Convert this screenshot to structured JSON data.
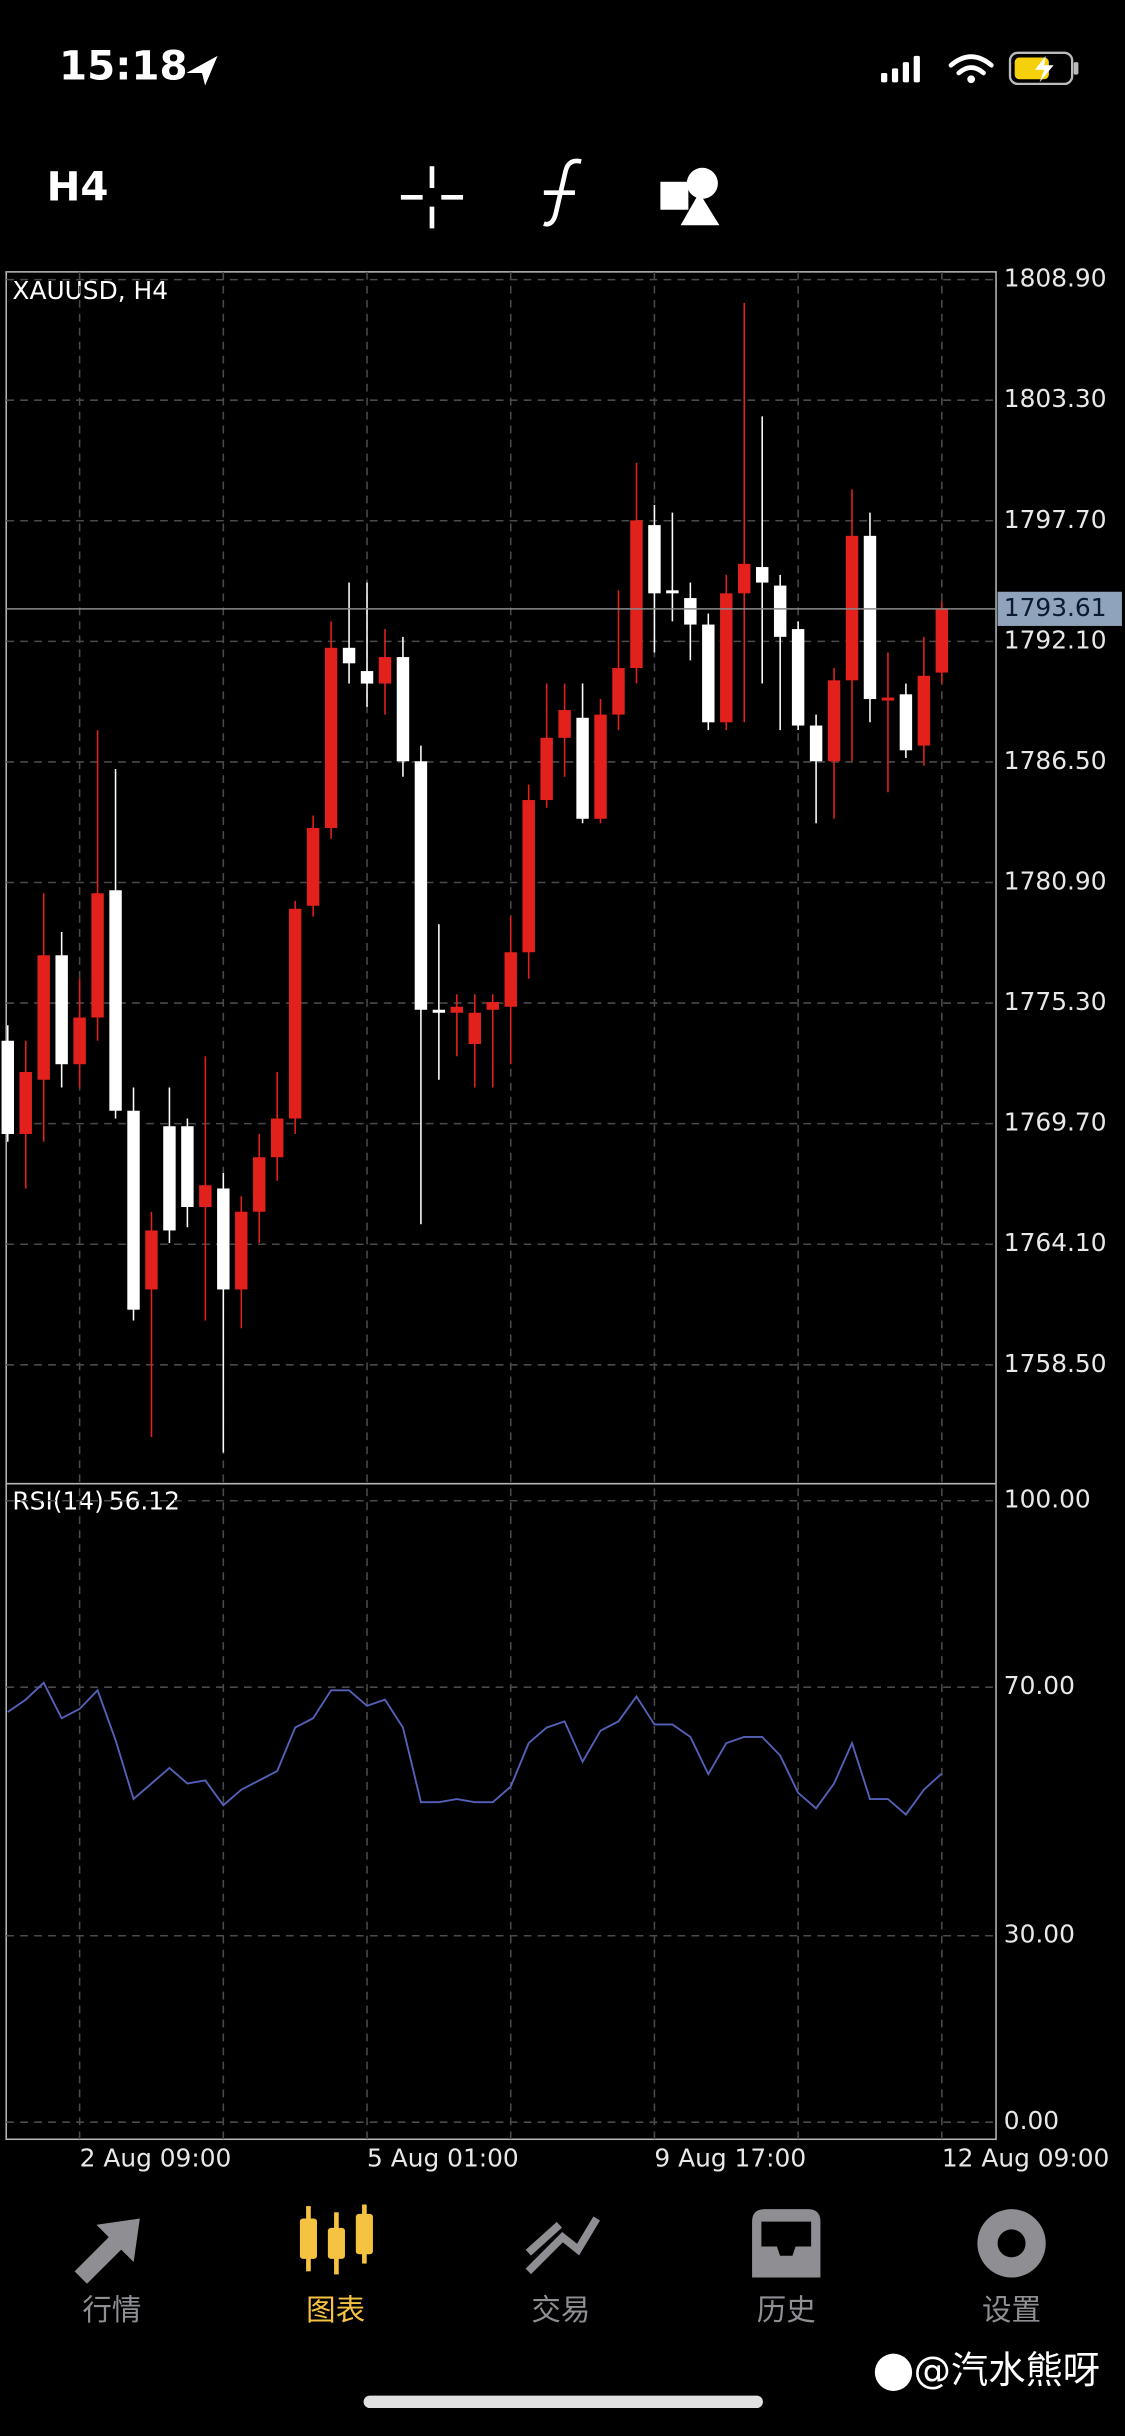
{
  "status_bar": {
    "time": "15:18"
  },
  "toolbar": {
    "timeframe": "H4"
  },
  "chart_data": [
    {
      "type": "candlestick",
      "title": "XAUUSD, H4",
      "categories": [
        null,
        null,
        null,
        null,
        "2 Aug 09:00",
        null,
        null,
        null,
        null,
        null,
        null,
        null,
        null,
        null,
        null,
        null,
        null,
        null,
        null,
        null,
        "5 Aug 01:00",
        null,
        null,
        null,
        null,
        null,
        null,
        null,
        null,
        null,
        null,
        null,
        null,
        null,
        null,
        null,
        "9 Aug 17:00",
        null,
        null,
        null,
        null,
        null,
        null,
        null,
        null,
        null,
        null,
        null,
        null,
        null,
        null,
        null,
        "12 Aug 09:00"
      ],
      "open": [
        1773.55,
        1769.22,
        1771.74,
        1777.52,
        1772.46,
        1774.63,
        1780.54,
        1770.3,
        1762.0,
        1769.58,
        1769.58,
        1765.83,
        1766.69,
        1762.0,
        1765.61,
        1768.14,
        1769.94,
        1779.82,
        1783.43,
        1791.8,
        1790.72,
        1790.14,
        1791.37,
        1786.53,
        1774.99,
        1774.85,
        1773.4,
        1774.99,
        1775.13,
        1777.66,
        1784.73,
        1787.62,
        1788.55,
        1783.86,
        1788.7,
        1790.86,
        1797.5,
        1794.47,
        1794.11,
        1792.88,
        1788.34,
        1794.33,
        1795.55,
        1794.69,
        1792.67,
        1788.19,
        1786.53,
        1790.29,
        1797.0,
        1789.35,
        1789.64,
        1787.26,
        1790.65
      ],
      "high": [
        1774.27,
        1773.55,
        1780.4,
        1778.6,
        1776.43,
        1787.98,
        1786.17,
        1771.38,
        1765.61,
        1771.38,
        1769.94,
        1772.83,
        1767.41,
        1766.33,
        1769.22,
        1772.1,
        1780.04,
        1784.01,
        1793.03,
        1794.83,
        1794.83,
        1792.67,
        1792.31,
        1787.26,
        1778.96,
        1775.71,
        1775.71,
        1775.71,
        1779.32,
        1785.45,
        1790.14,
        1790.14,
        1790.14,
        1789.42,
        1794.47,
        1800.39,
        1798.44,
        1798.08,
        1794.83,
        1793.39,
        1795.19,
        1807.82,
        1802.55,
        1795.19,
        1793.03,
        1788.7,
        1790.86,
        1799.16,
        1798.08,
        1791.58,
        1790.14,
        1792.31,
        1793.96
      ],
      "low": [
        1768.86,
        1766.69,
        1768.86,
        1771.38,
        1771.38,
        1773.55,
        1769.94,
        1760.56,
        1755.15,
        1764.16,
        1764.89,
        1760.56,
        1754.43,
        1760.2,
        1764.16,
        1767.05,
        1769.22,
        1779.32,
        1782.93,
        1790.14,
        1789.06,
        1788.7,
        1785.81,
        1765.03,
        1771.74,
        1772.83,
        1771.38,
        1771.38,
        1772.46,
        1776.43,
        1784.37,
        1785.81,
        1783.65,
        1783.65,
        1787.98,
        1790.14,
        1791.58,
        1793.03,
        1791.22,
        1787.98,
        1787.98,
        1788.34,
        1790.14,
        1787.98,
        1787.98,
        1783.65,
        1783.86,
        1786.53,
        1788.34,
        1785.09,
        1786.68,
        1786.32,
        1790.14
      ],
      "close": [
        1769.22,
        1772.1,
        1777.52,
        1772.46,
        1774.63,
        1780.4,
        1770.3,
        1761.06,
        1764.74,
        1764.74,
        1765.83,
        1766.84,
        1762.0,
        1765.61,
        1768.14,
        1769.94,
        1779.68,
        1783.43,
        1791.8,
        1791.08,
        1790.14,
        1791.37,
        1786.53,
        1774.99,
        1774.85,
        1775.13,
        1774.85,
        1775.35,
        1777.66,
        1784.73,
        1787.62,
        1788.91,
        1783.86,
        1788.7,
        1790.86,
        1797.72,
        1794.33,
        1794.33,
        1792.88,
        1788.34,
        1794.33,
        1795.7,
        1794.83,
        1792.31,
        1788.19,
        1786.53,
        1790.29,
        1797.0,
        1789.42,
        1789.49,
        1787.04,
        1790.5,
        1793.61
      ],
      "up_color": "#e3211c",
      "down_color": "#ffffff",
      "ylim": [
        1752.98,
        1809.26
      ],
      "yticks": [
        {
          "value": 1808.9,
          "label": "1808.90"
        },
        {
          "value": 1803.3,
          "label": "1803.30"
        },
        {
          "value": 1797.7,
          "label": "1797.70"
        },
        {
          "value": 1792.1,
          "label": "1792.10"
        },
        {
          "value": 1786.5,
          "label": "1786.50"
        },
        {
          "value": 1780.9,
          "label": "1780.90"
        },
        {
          "value": 1775.3,
          "label": "1775.30"
        },
        {
          "value": 1769.7,
          "label": "1769.70"
        },
        {
          "value": 1764.1,
          "label": "1764.10"
        },
        {
          "value": 1758.5,
          "label": "1758.50"
        }
      ],
      "grid": true
    },
    {
      "type": "line",
      "title": "RSI(14)",
      "color": "#5561b8",
      "values": [
        66,
        68,
        70.7,
        65,
        66.5,
        69.5,
        61.5,
        52,
        54.5,
        57,
        54.5,
        55,
        51,
        53.5,
        55,
        56.5,
        63.5,
        65,
        69.5,
        69.5,
        67,
        68,
        63.5,
        51.5,
        51.5,
        52,
        51.5,
        51.5,
        54,
        61,
        63.5,
        64.5,
        58,
        63,
        64.5,
        68.5,
        64,
        64,
        62,
        56,
        61,
        62,
        62,
        59,
        53,
        50.5,
        54.5,
        61,
        52,
        52,
        49.5,
        53.5,
        56.12
      ],
      "ylim": [
        -2.75,
        102.75
      ],
      "yticks": [
        {
          "value": 100,
          "label": "100.00"
        },
        {
          "value": 70,
          "label": "70.00"
        },
        {
          "value": 30,
          "label": "30.00"
        },
        {
          "value": 0,
          "label": "0.00"
        }
      ],
      "grid": true
    }
  ],
  "nav": {
    "items": [
      "行情",
      "图表",
      "交易",
      "历史",
      "设置"
    ],
    "active": 1
  },
  "watermark": "@汽水熊呀"
}
